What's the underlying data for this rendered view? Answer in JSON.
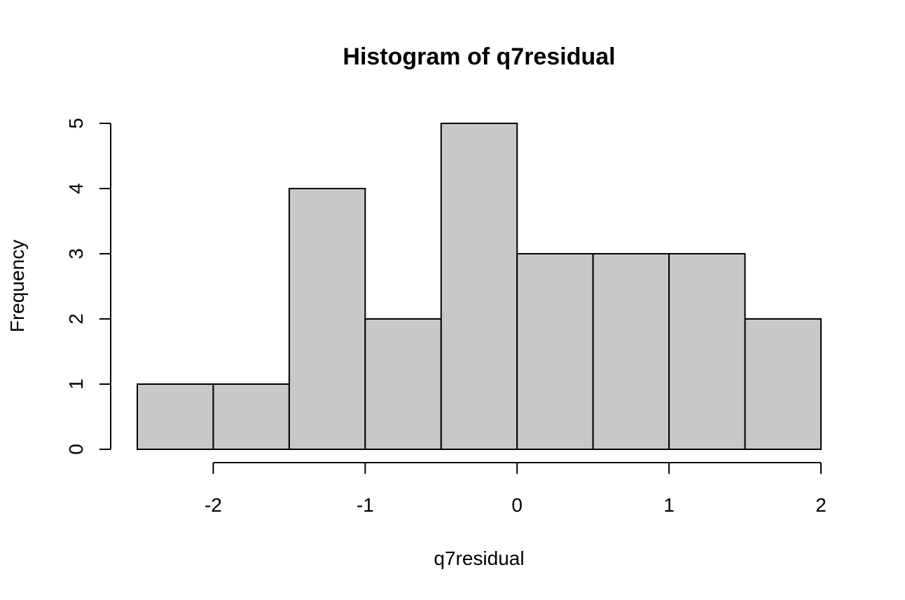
{
  "chart_data": {
    "type": "bar",
    "title": "Histogram of q7residual",
    "xlabel": "q7residual",
    "ylabel": "Frequency",
    "bin_edges": [
      -2.5,
      -2.0,
      -1.5,
      -1.0,
      -0.5,
      0.0,
      0.5,
      1.0,
      1.5,
      2.0
    ],
    "values": [
      1,
      1,
      4,
      2,
      5,
      3,
      3,
      3,
      2
    ],
    "xlim": [
      -2.5,
      2.0
    ],
    "ylim": [
      0,
      5
    ],
    "x_ticks": [
      -2,
      -1,
      0,
      1,
      2
    ],
    "x_tick_labels": [
      "-2",
      "-1",
      "0",
      "1",
      "2"
    ],
    "y_ticks": [
      0,
      1,
      2,
      3,
      4,
      5
    ],
    "y_tick_labels": [
      "0",
      "1",
      "2",
      "3",
      "4",
      "5"
    ],
    "grid": false,
    "bar_color": "#c8c8c8",
    "edge_color": "#000000"
  }
}
